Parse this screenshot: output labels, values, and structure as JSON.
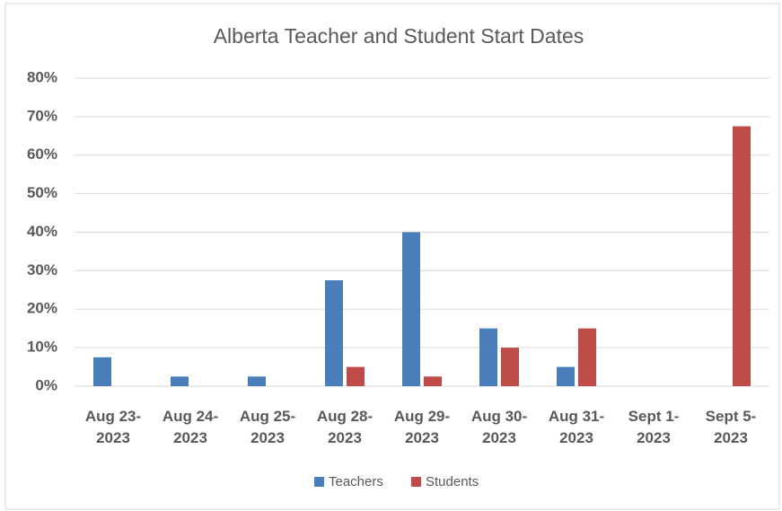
{
  "chart_data": {
    "type": "bar",
    "title": "Alberta Teacher and Student Start Dates",
    "categories": [
      "Aug 23- 2023",
      "Aug 24- 2023",
      "Aug 25- 2023",
      "Aug 28- 2023",
      "Aug 29- 2023",
      "Aug 30- 2023",
      "Aug 31- 2023",
      "Sept 1- 2023",
      "Sept 5- 2023"
    ],
    "series": [
      {
        "name": "Teachers",
        "color": "#4a7ebb",
        "values": [
          7.5,
          2.5,
          2.5,
          27.5,
          40,
          15,
          5,
          0,
          0
        ]
      },
      {
        "name": "Students",
        "color": "#be4b48",
        "values": [
          0,
          0,
          0,
          5,
          2.5,
          10,
          15,
          0,
          67.5
        ]
      }
    ],
    "ylim": [
      0,
      80
    ],
    "yticks": [
      {
        "value": 0,
        "label": "0%"
      },
      {
        "value": 10,
        "label": "10%"
      },
      {
        "value": 20,
        "label": "20%"
      },
      {
        "value": 30,
        "label": "30%"
      },
      {
        "value": 40,
        "label": "40%"
      },
      {
        "value": 50,
        "label": "50%"
      },
      {
        "value": 60,
        "label": "60%"
      },
      {
        "value": 70,
        "label": "70%"
      },
      {
        "value": 80,
        "label": "80%"
      }
    ],
    "grid": true,
    "legend": "bottom"
  }
}
